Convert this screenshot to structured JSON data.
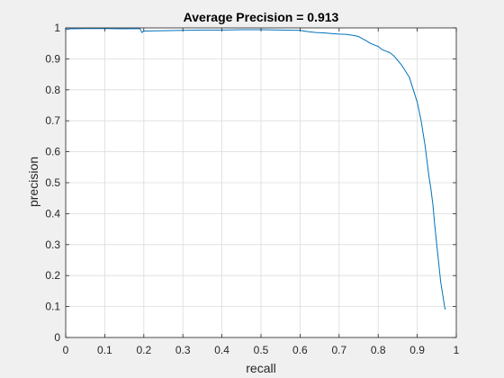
{
  "chart_data": {
    "type": "line",
    "title": "Average Precision = 0.913",
    "xlabel": "recall",
    "ylabel": "precision",
    "xlim": [
      0,
      1
    ],
    "ylim": [
      0,
      1
    ],
    "grid": true,
    "xticks": [
      0,
      0.1,
      0.2,
      0.3,
      0.4,
      0.5,
      0.6,
      0.7,
      0.8,
      0.9,
      1
    ],
    "yticks": [
      0,
      0.1,
      0.2,
      0.3,
      0.4,
      0.5,
      0.6,
      0.7,
      0.8,
      0.9,
      1
    ],
    "xtick_labels": [
      "0",
      "0.1",
      "0.2",
      "0.3",
      "0.4",
      "0.5",
      "0.6",
      "0.7",
      "0.8",
      "0.9",
      "1"
    ],
    "ytick_labels": [
      "0",
      "0.1",
      "0.2",
      "0.3",
      "0.4",
      "0.5",
      "0.6",
      "0.7",
      "0.8",
      "0.9",
      "1"
    ],
    "series": [
      {
        "color": "#0072bd",
        "x": [
          0.0,
          0.005,
          0.01,
          0.05,
          0.1,
          0.15,
          0.19,
          0.195,
          0.2,
          0.25,
          0.3,
          0.35,
          0.4,
          0.45,
          0.5,
          0.55,
          0.6,
          0.62,
          0.64,
          0.66,
          0.68,
          0.7,
          0.72,
          0.74,
          0.75,
          0.76,
          0.77,
          0.78,
          0.79,
          0.8,
          0.81,
          0.82,
          0.83,
          0.84,
          0.85,
          0.86,
          0.87,
          0.88,
          0.885,
          0.89,
          0.895,
          0.9,
          0.905,
          0.91,
          0.915,
          0.92,
          0.925,
          0.93,
          0.935,
          0.94,
          0.945,
          0.95,
          0.955,
          0.96,
          0.965,
          0.97,
          0.972
        ],
        "y": [
          0.998,
          0.995,
          0.997,
          0.998,
          0.998,
          0.997,
          0.998,
          0.985,
          0.99,
          0.991,
          0.992,
          0.993,
          0.993,
          0.994,
          0.994,
          0.993,
          0.992,
          0.988,
          0.985,
          0.984,
          0.982,
          0.98,
          0.979,
          0.975,
          0.972,
          0.965,
          0.958,
          0.95,
          0.945,
          0.94,
          0.93,
          0.925,
          0.92,
          0.91,
          0.895,
          0.88,
          0.86,
          0.84,
          0.82,
          0.8,
          0.78,
          0.76,
          0.73,
          0.7,
          0.66,
          0.62,
          0.57,
          0.52,
          0.48,
          0.43,
          0.36,
          0.3,
          0.24,
          0.18,
          0.14,
          0.1,
          0.09
        ]
      }
    ]
  }
}
